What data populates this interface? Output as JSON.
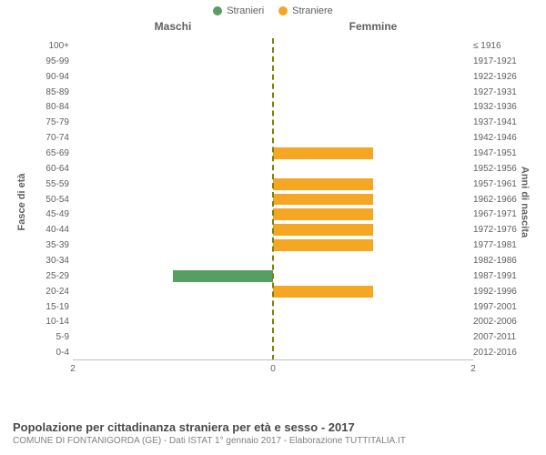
{
  "legend": {
    "male": {
      "label": "Stranieri",
      "color": "#589d62"
    },
    "female": {
      "label": "Straniere",
      "color": "#f5a623"
    }
  },
  "headers": {
    "left": "Maschi",
    "right": "Femmine"
  },
  "axis_titles": {
    "left": "Fasce di età",
    "right": "Anni di nascita"
  },
  "chart": {
    "type": "population-pyramid",
    "xmax": 2,
    "xticks": [
      2,
      0,
      2
    ],
    "background_color": "#ffffff",
    "center_line_color": "#808000",
    "bars": [
      {
        "age": "100+",
        "birth": "≤ 1916",
        "m": 0,
        "f": 0
      },
      {
        "age": "95-99",
        "birth": "1917-1921",
        "m": 0,
        "f": 0
      },
      {
        "age": "90-94",
        "birth": "1922-1926",
        "m": 0,
        "f": 0
      },
      {
        "age": "85-89",
        "birth": "1927-1931",
        "m": 0,
        "f": 0
      },
      {
        "age": "80-84",
        "birth": "1932-1936",
        "m": 0,
        "f": 0
      },
      {
        "age": "75-79",
        "birth": "1937-1941",
        "m": 0,
        "f": 0
      },
      {
        "age": "70-74",
        "birth": "1942-1946",
        "m": 0,
        "f": 0
      },
      {
        "age": "65-69",
        "birth": "1947-1951",
        "m": 0,
        "f": 1
      },
      {
        "age": "60-64",
        "birth": "1952-1956",
        "m": 0,
        "f": 0
      },
      {
        "age": "55-59",
        "birth": "1957-1961",
        "m": 0,
        "f": 1
      },
      {
        "age": "50-54",
        "birth": "1962-1966",
        "m": 0,
        "f": 1
      },
      {
        "age": "45-49",
        "birth": "1967-1971",
        "m": 0,
        "f": 1
      },
      {
        "age": "40-44",
        "birth": "1972-1976",
        "m": 0,
        "f": 1
      },
      {
        "age": "35-39",
        "birth": "1977-1981",
        "m": 0,
        "f": 1
      },
      {
        "age": "30-34",
        "birth": "1982-1986",
        "m": 0,
        "f": 0
      },
      {
        "age": "25-29",
        "birth": "1987-1991",
        "m": 1,
        "f": 0
      },
      {
        "age": "20-24",
        "birth": "1992-1996",
        "m": 0,
        "f": 1
      },
      {
        "age": "15-19",
        "birth": "1997-2001",
        "m": 0,
        "f": 0
      },
      {
        "age": "10-14",
        "birth": "2002-2006",
        "m": 0,
        "f": 0
      },
      {
        "age": "5-9",
        "birth": "2007-2011",
        "m": 0,
        "f": 0
      },
      {
        "age": "0-4",
        "birth": "2012-2016",
        "m": 0,
        "f": 0
      }
    ]
  },
  "footer": {
    "title": "Popolazione per cittadinanza straniera per età e sesso - 2017",
    "subtitle": "COMUNE DI FONTANIGORDA (GE) - Dati ISTAT 1° gennaio 2017 - Elaborazione TUTTITALIA.IT"
  }
}
